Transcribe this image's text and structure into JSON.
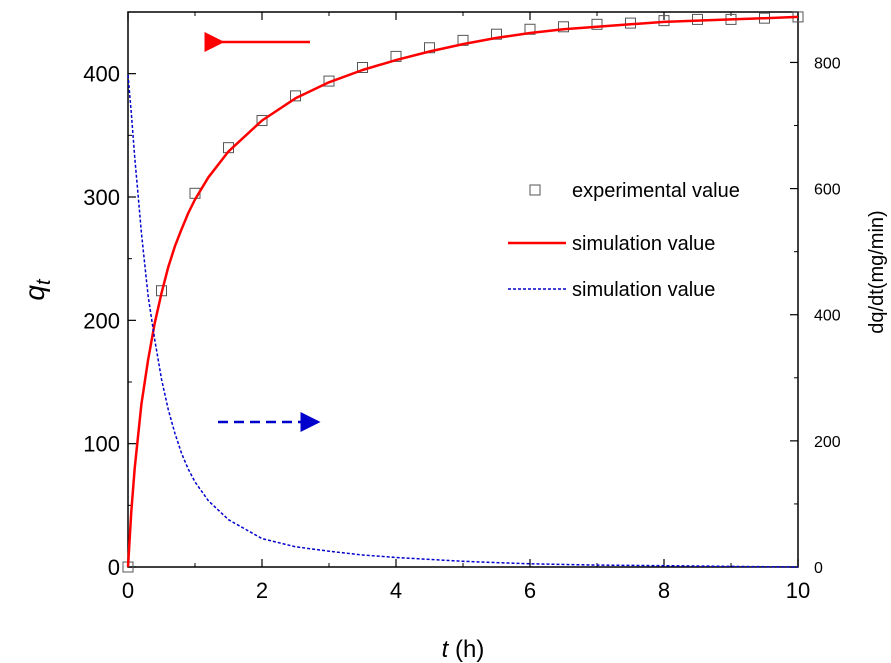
{
  "chart_data": {
    "type": "line",
    "xlabel_symbol": "t",
    "xlabel_unit": " (h)",
    "ylabel_left_symbol": "q",
    "ylabel_left_subscript": "t",
    "ylabel_right": "dq/dt(mg/min)",
    "xlim": [
      0,
      10
    ],
    "ylim_left": [
      0,
      450
    ],
    "ylim_right": [
      0,
      880
    ],
    "x_ticks": [
      "0",
      "2",
      "4",
      "6",
      "8",
      "10"
    ],
    "y_left_ticks": [
      "0",
      "100",
      "200",
      "300",
      "400"
    ],
    "y_right_ticks": [
      "0",
      "200",
      "400",
      "600",
      "800"
    ],
    "legend": [
      {
        "label": "experimental value",
        "style": "square-marker",
        "color": "#555555"
      },
      {
        "label": "simulation value",
        "style": "solid-line",
        "color": "#ff0000"
      },
      {
        "label": "simulation value",
        "style": "dashed-line",
        "color": "#0000cc"
      }
    ],
    "legend_position": "right-center",
    "annotations": [
      {
        "type": "arrow",
        "direction": "left",
        "style": "solid",
        "color": "#ff0000",
        "meaning": "left axis"
      },
      {
        "type": "arrow",
        "direction": "right",
        "style": "dashed",
        "color": "#0000cc",
        "meaning": "right axis"
      }
    ],
    "series": [
      {
        "label": "experimental value",
        "axis": "left",
        "marker": "square",
        "color": "#555555",
        "x": [
          0,
          0.5,
          1,
          1.5,
          2,
          2.5,
          3,
          3.5,
          4,
          4.5,
          5,
          5.5,
          6,
          6.5,
          7,
          7.5,
          8,
          8.5,
          9,
          9.5,
          10
        ],
        "y": [
          0,
          224,
          303,
          340,
          362,
          382,
          394,
          405,
          414,
          421,
          427,
          432,
          436,
          438,
          440,
          441,
          443,
          444,
          444,
          445,
          446
        ]
      },
      {
        "label": "simulation value",
        "axis": "left",
        "line": "solid",
        "color": "#ff0000",
        "x": [
          0,
          0.05,
          0.1,
          0.2,
          0.3,
          0.4,
          0.5,
          0.6,
          0.7,
          0.8,
          0.9,
          1.0,
          1.2,
          1.5,
          2.0,
          2.5,
          3.0,
          3.5,
          4.0,
          4.5,
          5.0,
          5.5,
          6.0,
          6.5,
          7.0,
          7.5,
          8.0,
          8.5,
          9.0,
          9.5,
          10.0
        ],
        "y": [
          0,
          45,
          80,
          132,
          168,
          198,
          222,
          243,
          260,
          274,
          287,
          298,
          316,
          337,
          362,
          380,
          393,
          403,
          411,
          418,
          424,
          429,
          433,
          436,
          438,
          440,
          442,
          443,
          444,
          445,
          446
        ]
      },
      {
        "label": "simulation value",
        "axis": "right",
        "line": "dashed",
        "color": "#0000cc",
        "x": [
          0,
          0.05,
          0.1,
          0.15,
          0.2,
          0.3,
          0.4,
          0.5,
          0.6,
          0.7,
          0.8,
          0.9,
          1.0,
          1.2,
          1.5,
          2.0,
          2.5,
          3.0,
          3.5,
          4.0,
          4.5,
          5.0,
          5.5,
          6.0,
          7.0,
          8.0,
          9.0,
          10.0
        ],
        "y": [
          780,
          720,
          650,
          590,
          530,
          430,
          360,
          298,
          250,
          212,
          180,
          155,
          135,
          105,
          75,
          45,
          32,
          25,
          19,
          15,
          12,
          9,
          7,
          5,
          3,
          2,
          1,
          0
        ]
      }
    ]
  }
}
